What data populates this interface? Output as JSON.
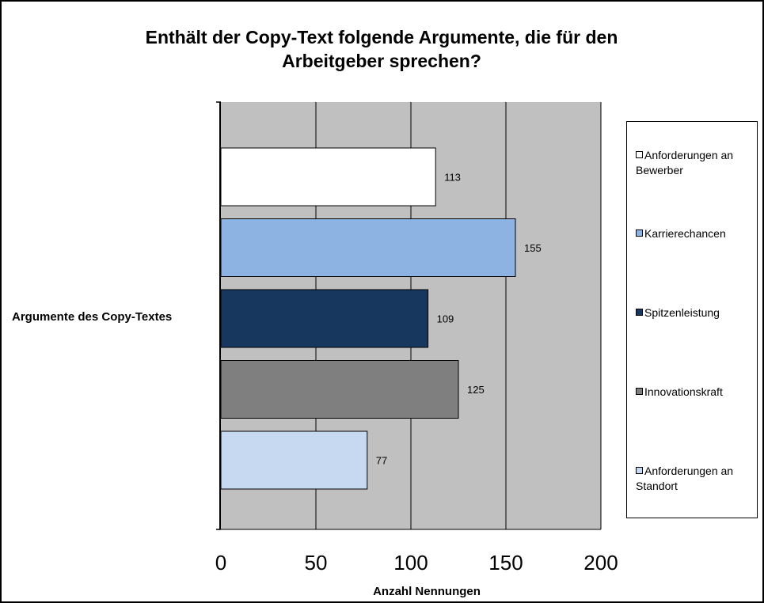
{
  "chart_data": {
    "type": "bar",
    "orientation": "horizontal",
    "title": "Enthält der Copy-Text folgende Argumente, die für den Arbeitgeber sprechen?",
    "title_lines": [
      "Enthält der Copy-Text folgende Argumente, die für den",
      "Arbeitgeber sprechen?"
    ],
    "ylabel": "Argumente des Copy-Textes",
    "xlabel": "Anzahl Nennungen",
    "xlim": [
      0,
      200
    ],
    "xticks": [
      0,
      50,
      100,
      150,
      200
    ],
    "grid": true,
    "legend_position": "right",
    "plot_background": "#c0c0c0",
    "series": [
      {
        "name": "Anforderungen an Bewerber",
        "value": 113,
        "color": "#ffffff"
      },
      {
        "name": "Karrierechancen",
        "value": 155,
        "color": "#8db3e2"
      },
      {
        "name": "Spitzenleistung",
        "value": 109,
        "color": "#17375e"
      },
      {
        "name": "Innovationskraft",
        "value": 125,
        "color": "#7f7f7f"
      },
      {
        "name": "Anforderungen an Standort",
        "value": 77,
        "color": "#c6d9f1"
      }
    ]
  }
}
